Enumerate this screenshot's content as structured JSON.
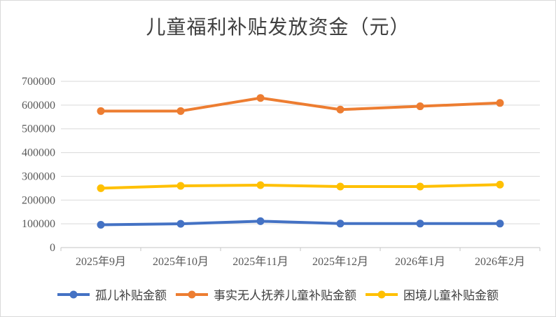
{
  "chart_data": {
    "type": "line",
    "title": "儿童福利补贴发放资金（元）",
    "xlabel": "",
    "ylabel": "",
    "categories": [
      "2025年9月",
      "2025年10月",
      "2025年11月",
      "2025年12月",
      "2026年1月",
      "2026年2月"
    ],
    "series": [
      {
        "name": "孤儿补贴金额",
        "color": "#4472C4",
        "values": [
          96000,
          100000,
          111000,
          101000,
          101000,
          101000
        ]
      },
      {
        "name": "事实无人抚养儿童补贴金额",
        "color": "#ED7D31",
        "values": [
          575000,
          575000,
          630000,
          581000,
          595000,
          609000
        ]
      },
      {
        "name": "困境儿童补贴金额",
        "color": "#FFC000",
        "values": [
          250000,
          260000,
          263000,
          257000,
          257000,
          265000
        ]
      }
    ],
    "ylim": [
      0,
      700000
    ],
    "ytick_step": 100000,
    "ytick_labels": [
      "0",
      "100000",
      "200000",
      "300000",
      "400000",
      "500000",
      "600000",
      "700000"
    ],
    "grid": true,
    "legend_position": "bottom",
    "marker": "circle",
    "colors": {
      "grid": "#D9D9D9",
      "axis_line": "#C6C6C6",
      "axis_label": "#595959",
      "title": "#404040",
      "background": "#FFFFFF",
      "border": "#D9D9D9"
    }
  }
}
